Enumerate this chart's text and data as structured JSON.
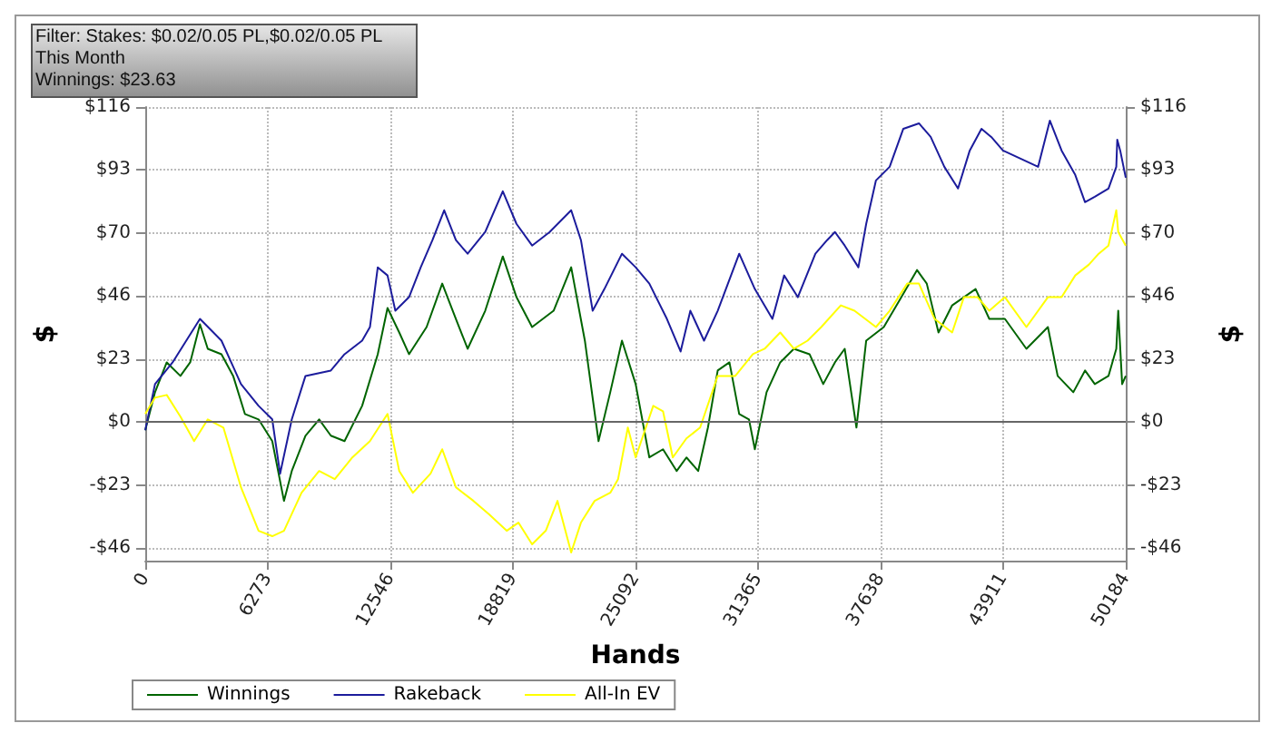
{
  "chart_data": {
    "type": "line",
    "xlabel": "Hands",
    "ylabel": "$",
    "y2label": "$",
    "annotations": [
      "Filter: Stakes: $0.02/0.05 PL,$0.02/0.05 PL",
      "This Month",
      "Winnings: $23.63"
    ],
    "xlim": [
      0,
      50184
    ],
    "xticks": [
      0,
      6273,
      12546,
      18819,
      25092,
      31365,
      37638,
      43911,
      50184
    ],
    "ylim": [
      -51,
      116
    ],
    "yticks": [
      {
        "value": -46.4,
        "label": "-$46"
      },
      {
        "value": -23.2,
        "label": "-$23"
      },
      {
        "value": 0,
        "label": "$0"
      },
      {
        "value": 23.2,
        "label": "$23"
      },
      {
        "value": 46.4,
        "label": "$46"
      },
      {
        "value": 69.6,
        "label": "$70"
      },
      {
        "value": 92.8,
        "label": "$93"
      },
      {
        "value": 116,
        "label": "$116"
      }
    ],
    "y2lim": [
      -51,
      116
    ],
    "y2ticks": [
      {
        "value": -46.4,
        "label": "-$46"
      },
      {
        "value": -23.2,
        "label": "-$23"
      },
      {
        "value": 0,
        "label": "$0"
      },
      {
        "value": 23.2,
        "label": "$23"
      },
      {
        "value": 46.4,
        "label": "$46"
      },
      {
        "value": 69.6,
        "label": "$70"
      },
      {
        "value": 92.8,
        "label": "$93"
      },
      {
        "value": 116,
        "label": "$116"
      }
    ],
    "grid": true,
    "legend": "bottom left",
    "marker": "none",
    "line_style": "solid",
    "ref_lines": [
      {
        "axis": "y",
        "value": 0,
        "color": "#666666"
      }
    ],
    "series": [
      {
        "name": "Winnings",
        "color": "#006400",
        "x": [
          0,
          500,
          1100,
          1800,
          2300,
          2800,
          3200,
          3900,
          4500,
          5100,
          5800,
          6500,
          7100,
          7500,
          8200,
          8900,
          9500,
          10200,
          11100,
          11900,
          12400,
          13000,
          13500,
          14400,
          15200,
          15900,
          16500,
          17400,
          18300,
          19000,
          19800,
          20900,
          21800,
          22500,
          23200,
          23800,
          24400,
          25100,
          25800,
          26500,
          27200,
          27700,
          28300,
          28800,
          29300,
          29900,
          30400,
          30900,
          31200,
          31800,
          32500,
          33200,
          34000,
          34700,
          35300,
          35800,
          36400,
          36900,
          37800,
          38700,
          39500,
          40000,
          40600,
          41300,
          42500,
          43200,
          44000,
          45100,
          46200,
          46700,
          47500,
          48100,
          48600,
          49300,
          49700,
          49800,
          50000,
          50184
        ],
        "values": [
          -3,
          11,
          22,
          17,
          22,
          36,
          27,
          25,
          17,
          3,
          1,
          -7,
          -29,
          -18,
          -5,
          1,
          -5,
          -7,
          6,
          25,
          42,
          33,
          25,
          35,
          51,
          38,
          27,
          41,
          61,
          46,
          35,
          41,
          57,
          30,
          -7,
          11,
          30,
          14,
          -13,
          -10,
          -18,
          -13,
          -18,
          -2,
          19,
          22,
          3,
          1,
          -10,
          11,
          22,
          27,
          25,
          14,
          22,
          27,
          -2,
          30,
          35,
          46,
          56,
          51,
          33,
          43,
          49,
          38,
          38,
          27,
          35,
          17,
          11,
          19,
          14,
          17,
          27,
          41,
          14,
          17
        ]
      },
      {
        "name": "Rakeback",
        "color": "#1c1c9c",
        "x": [
          0,
          500,
          1400,
          2800,
          3900,
          4900,
          5800,
          6500,
          6900,
          7500,
          8200,
          9500,
          10200,
          11100,
          11500,
          11900,
          12400,
          12800,
          13500,
          14100,
          14700,
          15300,
          15900,
          16500,
          17400,
          18300,
          19000,
          19800,
          20700,
          21800,
          22300,
          22900,
          23500,
          24400,
          25100,
          25800,
          26700,
          27400,
          27900,
          28600,
          29300,
          30400,
          31200,
          32100,
          32700,
          33400,
          34300,
          34900,
          35300,
          35800,
          36500,
          36900,
          37400,
          38100,
          38800,
          39600,
          40200,
          40900,
          41600,
          42200,
          42800,
          43300,
          43900,
          44800,
          45700,
          46300,
          46900,
          47600,
          48100,
          48600,
          49300,
          49700,
          49750,
          49900,
          50184
        ],
        "values": [
          -3,
          14,
          22,
          38,
          30,
          14,
          6,
          1,
          -19,
          1,
          17,
          19,
          25,
          30,
          35,
          57,
          54,
          41,
          46,
          57,
          67,
          78,
          67,
          62,
          70,
          85,
          73,
          65,
          70,
          78,
          67,
          41,
          49,
          62,
          57,
          51,
          38,
          26,
          41,
          30,
          41,
          62,
          49,
          38,
          54,
          46,
          62,
          67,
          70,
          65,
          57,
          73,
          89,
          94,
          108,
          110,
          105,
          94,
          86,
          100,
          108,
          105,
          100,
          97,
          94,
          111,
          100,
          91,
          81,
          83,
          86,
          94,
          104,
          100,
          90
        ]
      },
      {
        "name": "All-In EV",
        "color": "#ffff00",
        "x": [
          0,
          500,
          1100,
          1800,
          2500,
          3200,
          4000,
          4900,
          5800,
          6500,
          7100,
          8000,
          8900,
          9700,
          10600,
          11500,
          12400,
          13000,
          13700,
          14600,
          15200,
          15900,
          16800,
          17600,
          18500,
          19100,
          19800,
          20500,
          21100,
          21800,
          22300,
          23000,
          23800,
          24200,
          24700,
          25100,
          26000,
          26500,
          27000,
          27700,
          28400,
          29300,
          30200,
          31100,
          31700,
          32500,
          33200,
          33900,
          34600,
          35600,
          36300,
          37400,
          38100,
          39000,
          39600,
          40400,
          41300,
          41900,
          42600,
          43200,
          44000,
          45100,
          46200,
          46900,
          47600,
          48300,
          48800,
          49300,
          49700,
          49800,
          50184
        ],
        "values": [
          3,
          9,
          10,
          2,
          -7,
          1,
          -2,
          -24,
          -40,
          -42,
          -40,
          -26,
          -18,
          -21,
          -13,
          -7,
          3,
          -18,
          -26,
          -19,
          -10,
          -24,
          -29,
          -34,
          -40,
          -37,
          -45,
          -40,
          -29,
          -48,
          -37,
          -29,
          -26,
          -21,
          -2,
          -13,
          6,
          4,
          -13,
          -6,
          -2,
          17,
          17,
          25,
          27,
          33,
          27,
          30,
          35,
          43,
          41,
          35,
          41,
          51,
          51,
          38,
          33,
          46,
          46,
          41,
          46,
          35,
          46,
          46,
          54,
          58,
          62,
          65,
          78,
          70,
          65
        ]
      }
    ]
  }
}
